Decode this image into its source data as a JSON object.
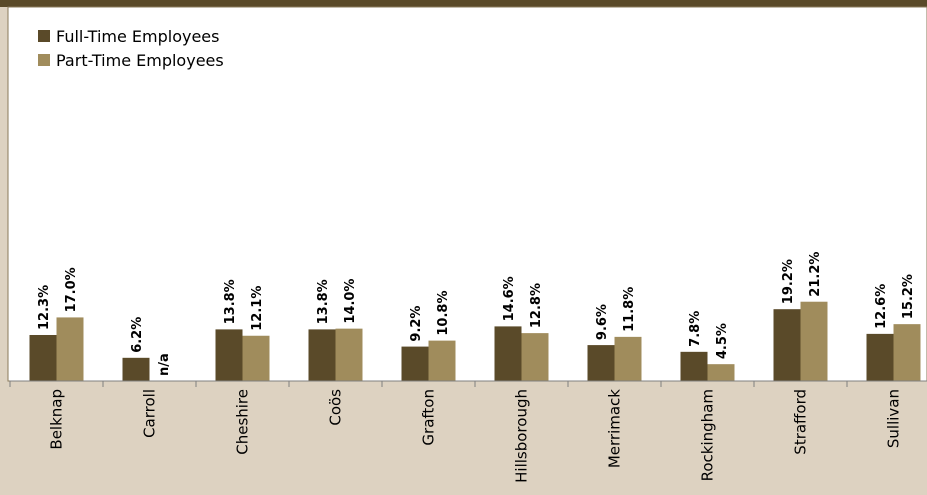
{
  "chart_data": {
    "type": "bar",
    "title": "",
    "xlabel": "",
    "ylabel": "",
    "categories": [
      "Belknap",
      "Carroll",
      "Cheshire",
      "Coös",
      "Grafton",
      "Hillsborough",
      "Merrimack",
      "Rockingham",
      "Strafford",
      "Sullivan"
    ],
    "series": [
      {
        "name": "Full-Time Employees",
        "color": "#5a4a29",
        "values": [
          12.3,
          6.2,
          13.8,
          13.8,
          9.2,
          14.6,
          9.6,
          7.8,
          19.2,
          12.6
        ],
        "labels": [
          "12.3%",
          "6.2%",
          "13.8%",
          "13.8%",
          "9.2%",
          "14.6%",
          "9.6%",
          "7.8%",
          "19.2%",
          "12.6%"
        ]
      },
      {
        "name": "Part-Time Employees",
        "color": "#a08c5c",
        "values": [
          17.0,
          null,
          12.1,
          14.0,
          10.8,
          12.8,
          11.8,
          4.5,
          21.2,
          15.2
        ],
        "labels": [
          "17.0%",
          "n/a",
          "12.1%",
          "14.0%",
          "10.8%",
          "12.8%",
          "11.8%",
          "4.5%",
          "21.2%",
          "15.2%"
        ]
      }
    ],
    "ylim": [
      0,
      100
    ],
    "grid": false,
    "legend_position": "top-left",
    "colors": {
      "background": "#ddd2c1",
      "plot_background": "#ffffff",
      "header_bar": "#5a4a29",
      "axis": "#808080"
    }
  }
}
